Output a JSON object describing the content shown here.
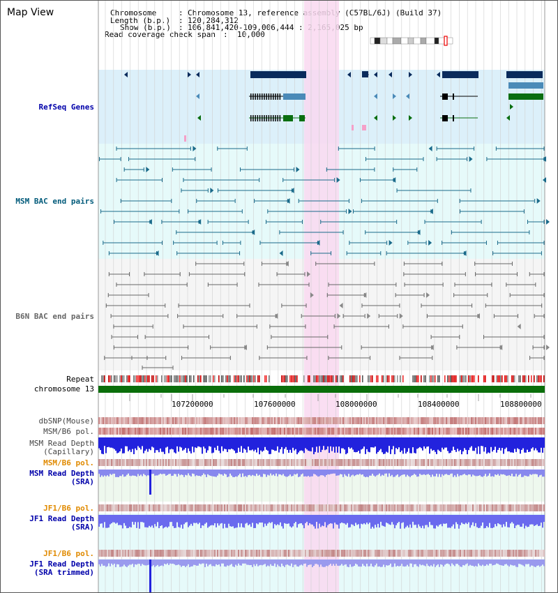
{
  "title": "Map View",
  "info": {
    "chromosome_key": "Chromosome",
    "chromosome_val": "Chromosome 13, reference assembly (C57BL/6J) (Build 37)",
    "length_key": "Length (b.p.)",
    "length_val": "120,284,312",
    "show_key": "Show (b.p.)",
    "show_val": "106,841,420-109,006,444 : 2,165,025 bp",
    "coverage_key": "Read coverage check span",
    "coverage_val": "10,000"
  },
  "tracks": {
    "refseq": "RefSeq Genes",
    "msm_bac": "MSM BAC end pairs",
    "b6n_bac": "B6N BAC end pairs",
    "repeat": "Repeat",
    "chromosome": "chromosome 13",
    "dbsnp": "dbSNP(Mouse)",
    "msm_b6_pol": "MSM/B6 pol.",
    "msm_depth_cap_1": "MSM Read Depth",
    "msm_depth_cap_2": "(Capillary)",
    "msm_b6_pol_sra": "MSM/B6 pol.",
    "msm_depth_sra_1": "MSM Read Depth",
    "msm_depth_sra_2": "(SRA)",
    "jf1_b6_pol": "JF1/B6 pol.",
    "jf1_depth_1": "JF1 Read Depth",
    "jf1_depth_2": "(SRA)",
    "jf1_b6_pol_trim": "JF1/B6 pol.",
    "jf1_trim_1": "JF1 Read Depth",
    "jf1_trim_2": "(SRA trimmed)"
  },
  "axis": {
    "ticks": [
      "107200000",
      "107600000",
      "108000000",
      "108400000",
      "108800000"
    ]
  },
  "colors": {
    "refseq_bg": "#dcf0fa",
    "msm_bg": "#e6fafa",
    "b6n_bg": "#f5f5f5",
    "highlight": "#f9d8f0",
    "gene_dark": "#0a2b5c",
    "gene_mid": "#4a8ab8",
    "gene_green": "#0a6e10",
    "msm_pair": "#1a6a8a",
    "b6n_pair": "#666666",
    "chrom_bar": "#0a6e0a",
    "snp_pink": "#f08080",
    "depth_blue": "#2222dd",
    "depth_light": "#8888ee",
    "label_blue": "#0000aa",
    "label_teal": "#005a7a",
    "label_gray": "#666666",
    "label_orange": "#e08a00"
  }
}
